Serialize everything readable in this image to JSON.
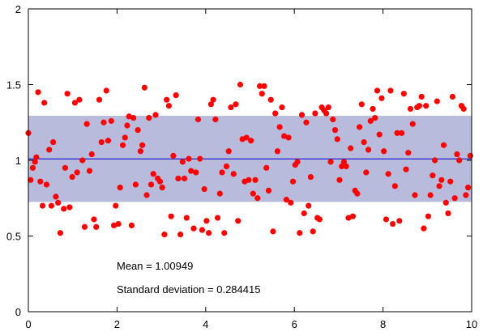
{
  "chart_data": {
    "type": "scatter",
    "title": "",
    "xlabel": "",
    "ylabel": "",
    "xlim": [
      0,
      10
    ],
    "ylim": [
      0,
      2
    ],
    "xticks": [
      "0",
      "2",
      "4",
      "6",
      "8",
      "10"
    ],
    "yticks": [
      "0",
      "0.5",
      "1",
      "1.5",
      "2"
    ],
    "grid": false,
    "mean": 1.00949,
    "std": 0.284415,
    "band": [
      0.725075,
      1.293905
    ],
    "colors": {
      "points": "#ff0000",
      "band": "#b8bbdc",
      "mean_line": "#0000cc",
      "axes": "#000000"
    },
    "annotations": {
      "mean_text": "Mean = 1.00949",
      "std_text": "Standard deviation = 0.284415"
    },
    "series": [
      {
        "points": [
          [
            0.0,
            1.18
          ],
          [
            0.05,
            0.87
          ],
          [
            0.1,
            0.95
          ],
          [
            0.15,
            0.99
          ],
          [
            0.18,
            1.02
          ],
          [
            0.22,
            1.45
          ],
          [
            0.27,
            0.86
          ],
          [
            0.32,
            0.7
          ],
          [
            0.36,
            1.38
          ],
          [
            0.41,
            0.84
          ],
          [
            0.47,
            1.07
          ],
          [
            0.52,
            0.7
          ],
          [
            0.56,
            1.12
          ],
          [
            0.62,
            0.76
          ],
          [
            0.67,
            0.72
          ],
          [
            0.72,
            0.52
          ],
          [
            0.8,
            0.68
          ],
          [
            0.83,
            0.95
          ],
          [
            0.88,
            1.44
          ],
          [
            0.93,
            0.69
          ],
          [
            0.99,
            0.89
          ],
          [
            1.05,
            1.38
          ],
          [
            1.1,
            0.92
          ],
          [
            1.15,
            1.4
          ],
          [
            1.22,
            1.0
          ],
          [
            1.27,
            0.56
          ],
          [
            1.32,
            1.24
          ],
          [
            1.38,
            0.93
          ],
          [
            1.43,
            1.04
          ],
          [
            1.48,
            0.61
          ],
          [
            1.53,
            0.56
          ],
          [
            1.6,
            1.4
          ],
          [
            1.65,
            1.12
          ],
          [
            1.7,
            1.25
          ],
          [
            1.76,
            1.46
          ],
          [
            1.8,
            1.13
          ],
          [
            1.87,
            1.26
          ],
          [
            1.93,
            0.57
          ],
          [
            1.97,
            0.7
          ],
          [
            2.03,
            0.58
          ],
          [
            2.07,
            0.82
          ],
          [
            2.13,
            1.1
          ],
          [
            2.18,
            1.15
          ],
          [
            2.23,
            1.23
          ],
          [
            2.27,
            1.29
          ],
          [
            2.33,
            0.57
          ],
          [
            2.37,
            1.28
          ],
          [
            2.42,
            0.84
          ],
          [
            2.47,
            1.2
          ],
          [
            2.53,
            1.06
          ],
          [
            2.57,
            1.1
          ],
          [
            2.62,
            1.48
          ],
          [
            2.67,
            0.77
          ],
          [
            2.72,
            1.28
          ],
          [
            2.77,
            0.84
          ],
          [
            2.82,
            0.91
          ],
          [
            2.87,
            1.3
          ],
          [
            2.92,
            0.88
          ],
          [
            2.97,
            0.86
          ],
          [
            3.02,
            0.82
          ],
          [
            3.07,
            0.51
          ],
          [
            3.12,
            1.4
          ],
          [
            3.17,
            1.36
          ],
          [
            3.22,
            0.63
          ],
          [
            3.27,
            1.03
          ],
          [
            3.33,
            1.43
          ],
          [
            3.38,
            0.88
          ],
          [
            3.43,
            0.51
          ],
          [
            3.48,
            0.99
          ],
          [
            3.52,
            0.88
          ],
          [
            3.57,
            0.62
          ],
          [
            3.62,
            1.01
          ],
          [
            3.67,
            0.93
          ],
          [
            3.73,
            0.55
          ],
          [
            3.78,
            0.92
          ],
          [
            3.83,
            1.27
          ],
          [
            3.87,
            1.01
          ],
          [
            3.92,
            0.54
          ],
          [
            3.97,
            0.81
          ],
          [
            4.02,
            0.6
          ],
          [
            4.07,
            0.52
          ],
          [
            4.12,
            1.37
          ],
          [
            4.17,
            1.4
          ],
          [
            4.22,
            1.27
          ],
          [
            4.27,
            0.62
          ],
          [
            4.32,
            0.78
          ],
          [
            4.37,
            0.92
          ],
          [
            4.42,
            0.52
          ],
          [
            4.47,
            0.96
          ],
          [
            4.52,
            1.06
          ],
          [
            4.57,
            1.35
          ],
          [
            4.63,
            0.91
          ],
          [
            4.68,
            1.37
          ],
          [
            4.73,
            0.6
          ],
          [
            4.78,
            1.5
          ],
          [
            4.83,
            1.14
          ],
          [
            4.88,
            0.86
          ],
          [
            4.92,
            1.15
          ],
          [
            4.97,
            0.87
          ],
          [
            5.02,
            1.13
          ],
          [
            5.07,
            0.78
          ],
          [
            5.12,
            0.87
          ],
          [
            5.17,
            0.75
          ],
          [
            5.22,
            1.49
          ],
          [
            5.27,
            1.44
          ],
          [
            5.32,
            1.49
          ],
          [
            5.37,
            0.95
          ],
          [
            5.42,
            0.8
          ],
          [
            5.47,
            1.4
          ],
          [
            5.52,
            0.53
          ],
          [
            5.57,
            1.31
          ],
          [
            5.62,
            1.06
          ],
          [
            5.67,
            1.22
          ],
          [
            5.72,
            1.35
          ],
          [
            5.77,
            1.16
          ],
          [
            5.82,
            0.74
          ],
          [
            5.87,
            1.15
          ],
          [
            5.92,
            0.72
          ],
          [
            5.97,
            0.86
          ],
          [
            6.02,
            0.97
          ],
          [
            6.07,
            0.99
          ],
          [
            6.12,
            0.52
          ],
          [
            6.17,
            1.3
          ],
          [
            6.22,
            0.65
          ],
          [
            6.27,
            1.25
          ],
          [
            6.32,
            0.7
          ],
          [
            6.37,
            0.89
          ],
          [
            6.42,
            0.53
          ],
          [
            6.47,
            1.31
          ],
          [
            6.52,
            0.62
          ],
          [
            6.57,
            0.61
          ],
          [
            6.62,
            1.35
          ],
          [
            6.67,
            1.33
          ],
          [
            6.72,
            1.31
          ],
          [
            6.77,
            1.35
          ],
          [
            6.82,
            0.99
          ],
          [
            6.87,
            1.27
          ],
          [
            6.92,
            1.2
          ],
          [
            6.97,
            1.14
          ],
          [
            7.02,
            0.87
          ],
          [
            7.07,
            0.96
          ],
          [
            7.12,
            0.99
          ],
          [
            7.17,
            0.96
          ],
          [
            7.22,
            0.62
          ],
          [
            7.27,
            1.08
          ],
          [
            7.32,
            0.63
          ],
          [
            7.37,
            0.8
          ],
          [
            7.42,
            0.78
          ],
          [
            7.47,
            1.22
          ],
          [
            7.52,
            1.37
          ],
          [
            7.57,
            1.12
          ],
          [
            7.62,
            0.92
          ],
          [
            7.67,
            1.07
          ],
          [
            7.72,
            1.26
          ],
          [
            7.77,
            1.34
          ],
          [
            7.82,
            1.28
          ],
          [
            7.87,
            1.46
          ],
          [
            7.92,
            1.17
          ],
          [
            7.97,
            1.41
          ],
          [
            8.02,
            1.06
          ],
          [
            8.07,
            0.61
          ],
          [
            8.12,
            0.91
          ],
          [
            8.17,
            1.46
          ],
          [
            8.22,
            0.58
          ],
          [
            8.27,
            0.83
          ],
          [
            8.32,
            1.18
          ],
          [
            8.37,
            0.6
          ],
          [
            8.42,
            1.18
          ],
          [
            8.47,
            1.44
          ],
          [
            8.52,
            0.94
          ],
          [
            8.57,
            1.05
          ],
          [
            8.62,
            1.34
          ],
          [
            8.67,
            1.24
          ],
          [
            8.72,
            0.77
          ],
          [
            8.77,
            1.35
          ],
          [
            8.82,
            1.36
          ],
          [
            8.87,
            1.42
          ],
          [
            8.92,
            0.55
          ],
          [
            8.97,
            1.36
          ],
          [
            9.02,
            0.63
          ],
          [
            9.07,
            0.77
          ],
          [
            9.12,
            0.9
          ],
          [
            9.17,
            1.0
          ],
          [
            9.22,
            1.39
          ],
          [
            9.27,
            0.83
          ],
          [
            9.32,
            0.87
          ],
          [
            9.37,
            1.1
          ],
          [
            9.42,
            0.72
          ],
          [
            9.47,
            0.65
          ],
          [
            9.52,
            0.86
          ],
          [
            9.57,
            1.42
          ],
          [
            9.62,
            0.75
          ],
          [
            9.67,
            1.04
          ],
          [
            9.72,
            1.0
          ],
          [
            9.77,
            1.36
          ],
          [
            9.82,
            1.34
          ],
          [
            9.87,
            0.77
          ],
          [
            9.92,
            0.82
          ],
          [
            9.97,
            1.03
          ]
        ]
      }
    ]
  }
}
